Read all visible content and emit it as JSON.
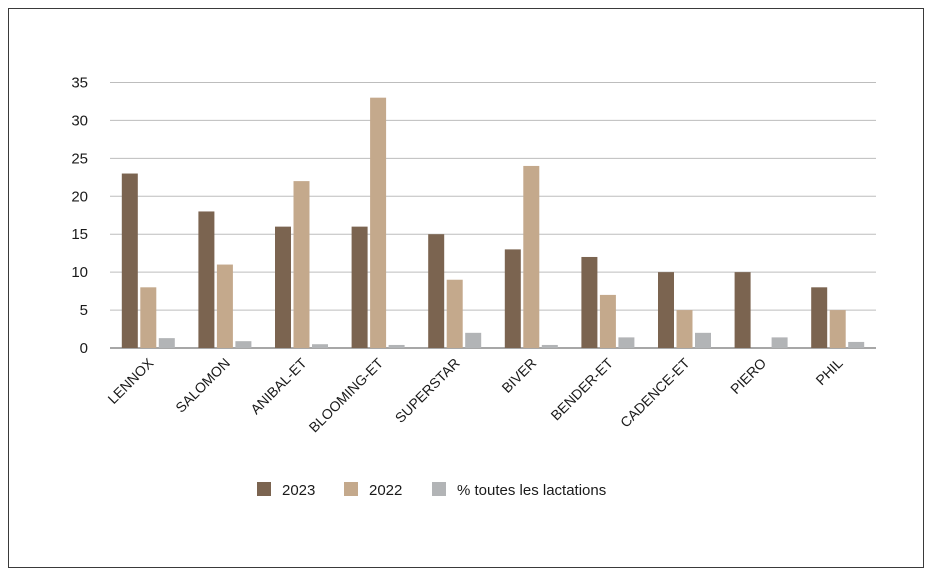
{
  "chart_data": {
    "type": "bar",
    "categories": [
      "LENNOX",
      "SALOMON",
      "ANIBAL-ET",
      "BLOOMING-ET",
      "SUPERSTAR",
      "BIVER",
      "BENDER-ET",
      "CADENCE-ET",
      "PIERO",
      "PHIL"
    ],
    "series": [
      {
        "name": "2023",
        "color": "#7b6450",
        "values": [
          23,
          18,
          16,
          16,
          15,
          13,
          12,
          10,
          10,
          8
        ]
      },
      {
        "name": "2022",
        "color": "#c4a98c",
        "values": [
          8,
          11,
          22,
          33,
          9,
          24,
          7,
          5,
          0,
          5
        ]
      },
      {
        "name": "% toutes les lactations",
        "color": "#b2b4b6",
        "values": [
          1.3,
          0.9,
          0.5,
          0.4,
          2.0,
          0.4,
          1.4,
          2.0,
          1.4,
          0.8
        ]
      }
    ],
    "yticks": [
      0,
      5,
      10,
      15,
      20,
      25,
      30,
      35
    ],
    "ylim": [
      0,
      35
    ],
    "grid": true,
    "legend_position": "bottom"
  }
}
